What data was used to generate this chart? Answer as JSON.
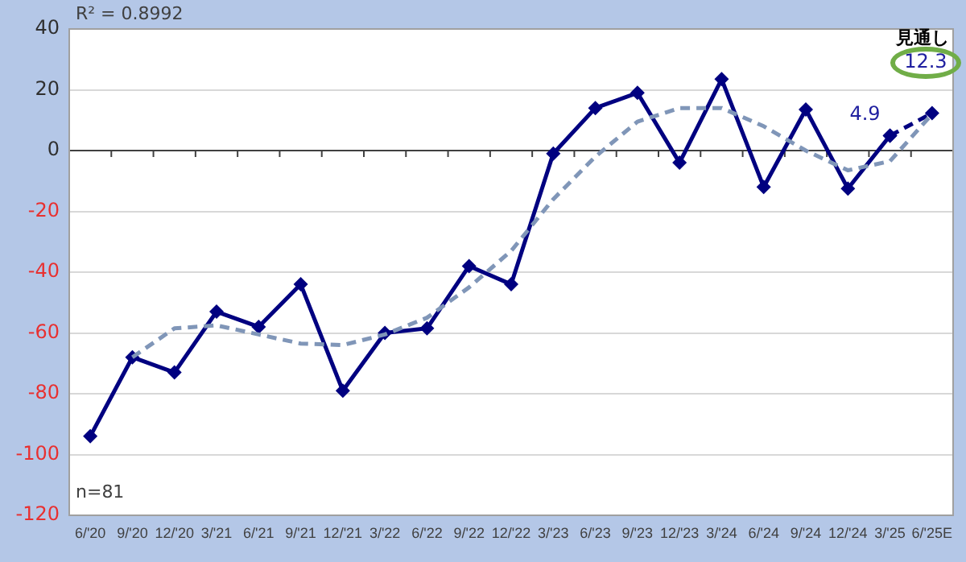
{
  "chart_data": {
    "type": "line",
    "categories": [
      "6/'20",
      "9/'20",
      "12/'20",
      "3/'21",
      "6/'21",
      "9/'21",
      "12/'21",
      "3/'22",
      "6/'22",
      "9/'22",
      "12/'22",
      "3/'23",
      "6/'23",
      "9/'23",
      "12/'23",
      "3/'24",
      "6/'24",
      "9/'24",
      "12/'24",
      "3/'25",
      "6/'25E"
    ],
    "series": [
      {
        "color": "#000080",
        "marker": "diamond",
        "line_style": "solid",
        "values": [
          -94,
          -68,
          -73,
          -53,
          -58,
          -44,
          -79,
          -60,
          -58.5,
          -38,
          -44,
          -1,
          14,
          19,
          -4,
          23.5,
          -12,
          13.5,
          -12.5,
          4.9,
          null
        ]
      },
      {
        "color": "#000080",
        "marker": "diamond",
        "line_style": "dashed",
        "values": [
          null,
          null,
          null,
          null,
          null,
          null,
          null,
          null,
          null,
          null,
          null,
          null,
          null,
          null,
          null,
          null,
          null,
          null,
          null,
          4.9,
          12.3
        ],
        "value_labels": [
          null,
          null,
          null,
          null,
          null,
          null,
          null,
          null,
          null,
          null,
          null,
          null,
          null,
          null,
          null,
          null,
          null,
          null,
          null,
          "4.9",
          "12.3"
        ]
      },
      {
        "color": "#8096b8",
        "marker": "none",
        "line_style": "dashed",
        "values": [
          null,
          -68,
          -58.5,
          -57.5,
          -60.5,
          -63.5,
          -64,
          -60.5,
          -55,
          -45,
          -33,
          -16,
          -2,
          9.5,
          14,
          14,
          8,
          0,
          -6.5,
          -3.5,
          12
        ]
      }
    ],
    "ylim": [
      -120,
      40
    ],
    "yticks": [
      -120,
      -100,
      -80,
      -60,
      -40,
      -20,
      0,
      20,
      40
    ],
    "grid": "y",
    "legend": false,
    "annotations": [
      "R² = 0.8992",
      "n=81",
      "見通し"
    ]
  }
}
